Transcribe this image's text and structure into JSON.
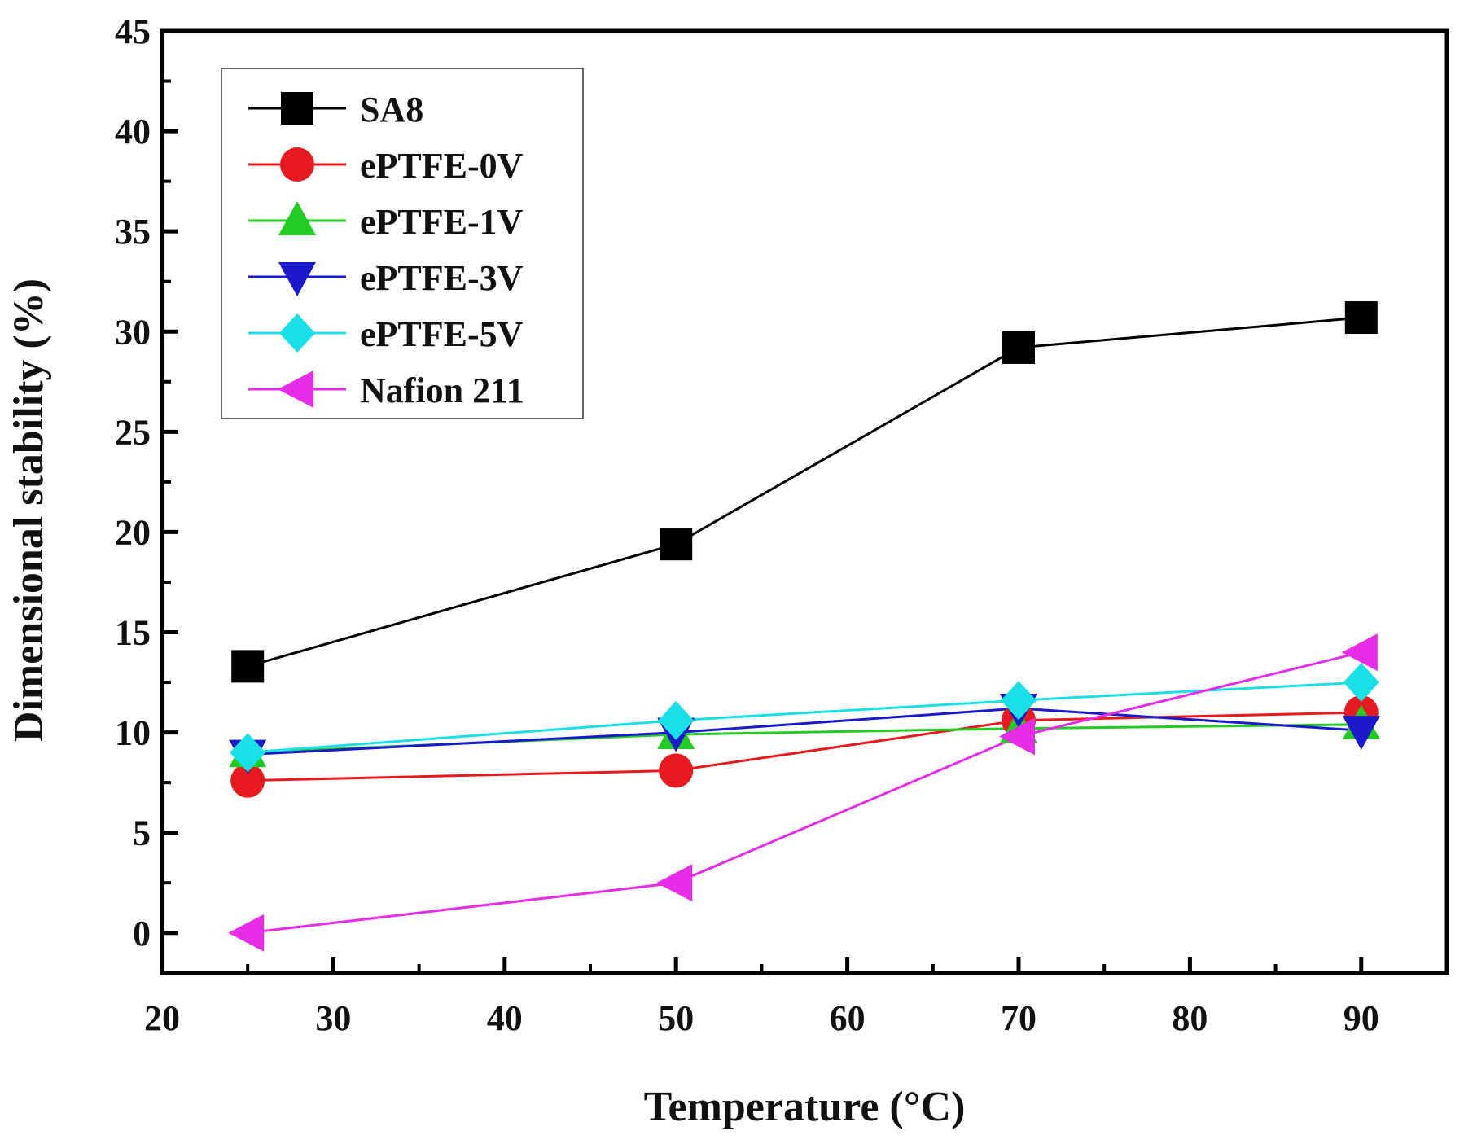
{
  "chart_data": {
    "type": "line",
    "title": "",
    "xlabel": "Temperature (°C)",
    "ylabel": "Dimensional stability (%)",
    "xlim": [
      20,
      95
    ],
    "ylim": [
      -2,
      45
    ],
    "xticks": [
      20,
      30,
      40,
      50,
      60,
      70,
      80,
      90
    ],
    "yticks": [
      0,
      5,
      10,
      15,
      20,
      25,
      30,
      35,
      40,
      45
    ],
    "grid": false,
    "legend_position": "top-left",
    "x": [
      25,
      50,
      70,
      90
    ],
    "series": [
      {
        "name": "SA8",
        "color": "#000000",
        "marker": "square",
        "values": [
          13.3,
          19.4,
          29.2,
          30.7
        ]
      },
      {
        "name": "ePTFE-0V",
        "color": "#e8191f",
        "marker": "circle",
        "values": [
          7.6,
          8.1,
          10.6,
          11.0
        ]
      },
      {
        "name": "ePTFE-1V",
        "color": "#22cc22",
        "marker": "triangle-up",
        "values": [
          9.0,
          9.9,
          10.2,
          10.4
        ]
      },
      {
        "name": "ePTFE-3V",
        "color": "#1a1acc",
        "marker": "triangle-down",
        "values": [
          8.9,
          10.0,
          11.2,
          10.1
        ]
      },
      {
        "name": "ePTFE-5V",
        "color": "#19e0e6",
        "marker": "diamond",
        "values": [
          9.0,
          10.6,
          11.6,
          12.5
        ]
      },
      {
        "name": "Nafion 211",
        "color": "#e62ce6",
        "marker": "triangle-left",
        "values": [
          0.0,
          2.5,
          9.8,
          14.0
        ]
      }
    ]
  }
}
